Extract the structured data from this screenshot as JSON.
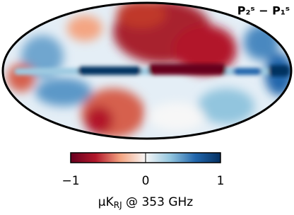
{
  "chart_data": {
    "type": "map",
    "title": "P₂ˢ − P₁ˢ",
    "colorbar": {
      "lim": [
        -1,
        1
      ],
      "ticks": [
        {
          "value": -1,
          "label": "−1"
        },
        0,
        1
      ],
      "colors": [
        "#67001f",
        "#b2182b",
        "#f4a582",
        "#f7f7f7",
        "#92c5de",
        "#2166ac",
        "#053061"
      ],
      "label": "μK",
      "label_sub": "RJ",
      "label_rest": " @ 353 GHz"
    }
  }
}
